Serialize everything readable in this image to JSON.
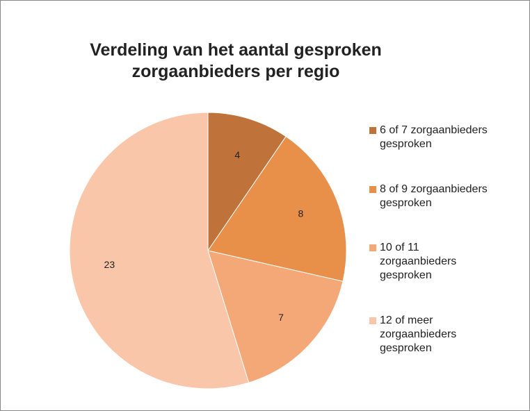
{
  "chart_data": {
    "type": "pie",
    "title": "Verdeling van het aantal gesproken zorgaanbieders per regio",
    "categories": [
      "6 of 7 zorgaanbieders gesproken",
      "8 of 9 zorgaanbieders gesproken",
      "10 of 11 zorgaanbieders gesproken",
      "12 of meer zorgaanbieders gesproken"
    ],
    "values": [
      4,
      8,
      7,
      23
    ],
    "colors": [
      "#bf733b",
      "#e88f4a",
      "#f5a877",
      "#f9c6a9"
    ],
    "legend": "right"
  }
}
